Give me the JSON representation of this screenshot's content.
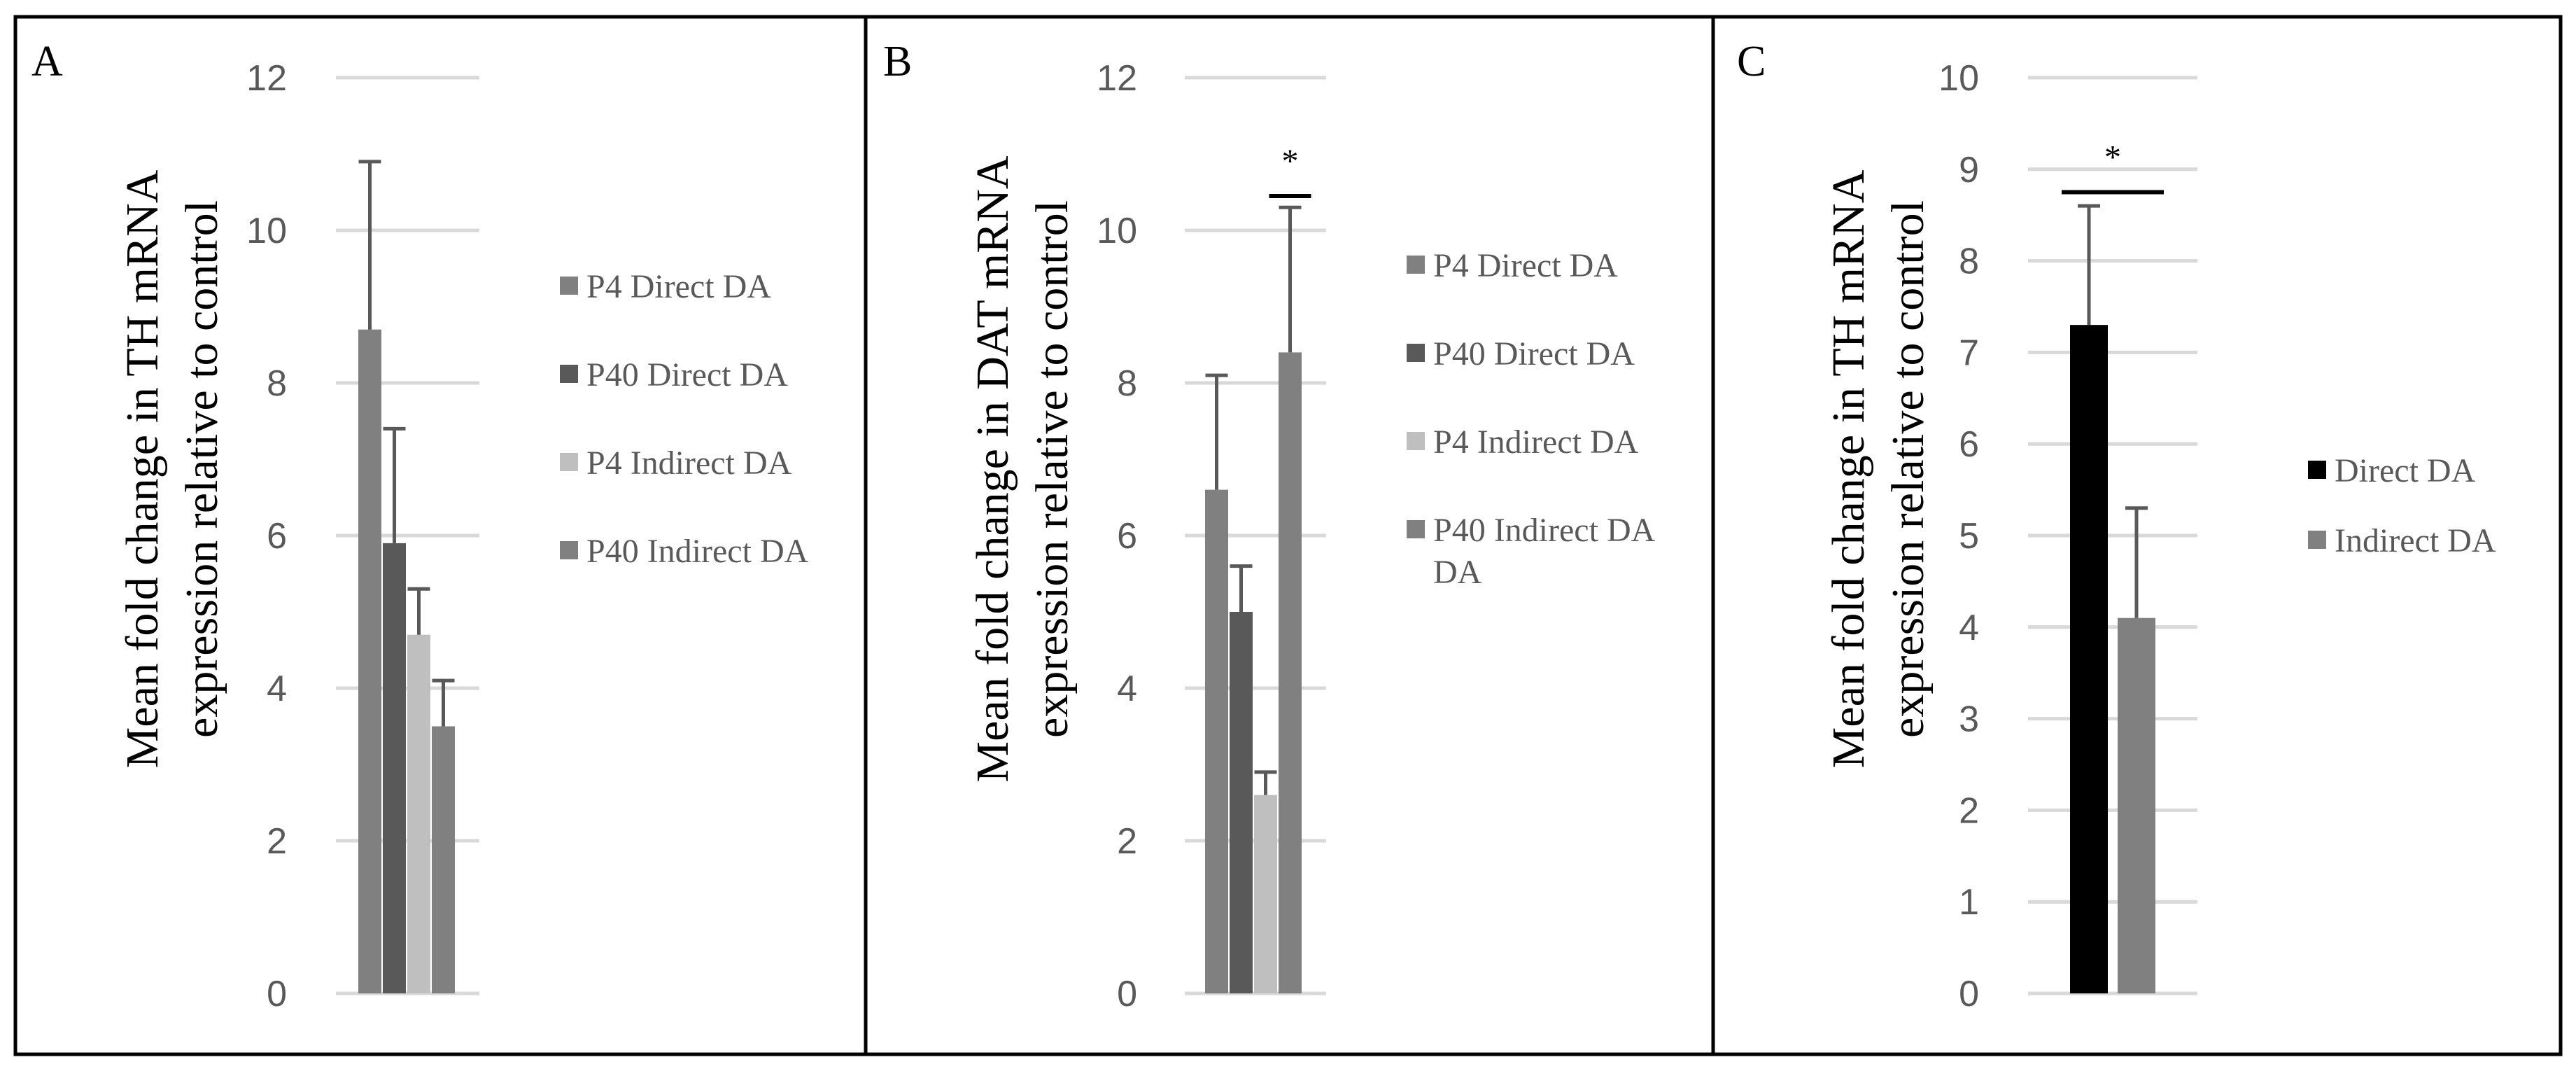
{
  "chart_data": [
    {
      "type": "bar",
      "panel": "A",
      "ylabel": [
        "Mean fold change in TH mRNA",
        "expression relative to control"
      ],
      "ylim": [
        0,
        12
      ],
      "ytick_step": 2,
      "grid": true,
      "legend_position": "right",
      "series": [
        {
          "name": "P4 Direct DA",
          "value": 8.7,
          "error": 2.2,
          "color": "#808080"
        },
        {
          "name": "P40 Direct DA",
          "value": 5.9,
          "error": 1.5,
          "color": "#595959"
        },
        {
          "name": "P4 Indirect DA",
          "value": 4.7,
          "error": 0.6,
          "color": "#bfbfbf"
        },
        {
          "name": "P40 Indirect DA",
          "value": 3.5,
          "error": 0.6,
          "color": "#808080"
        }
      ],
      "legend": [
        {
          "lines": [
            "P4 Direct DA"
          ],
          "color": "#808080"
        },
        {
          "lines": [
            "P40 Direct DA"
          ],
          "color": "#595959"
        },
        {
          "lines": [
            "P4 Indirect DA"
          ],
          "color": "#bfbfbf"
        },
        {
          "lines": [
            "P40 Indirect DA"
          ],
          "color": "#808080"
        }
      ],
      "significance": []
    },
    {
      "type": "bar",
      "panel": "B",
      "ylabel": [
        "Mean fold change in DAT mRNA",
        "expression relative to control"
      ],
      "ylim": [
        0,
        12
      ],
      "ytick_step": 2,
      "grid": true,
      "legend_position": "right",
      "series": [
        {
          "name": "P4 Direct DA",
          "value": 6.6,
          "error": 1.5,
          "color": "#808080"
        },
        {
          "name": "P40 Direct DA",
          "value": 5.0,
          "error": 0.6,
          "color": "#595959"
        },
        {
          "name": "P4 Indirect DA",
          "value": 2.6,
          "error": 0.3,
          "color": "#bfbfbf"
        },
        {
          "name": "P40 Indirect DA",
          "value": 8.4,
          "error": 1.9,
          "color": "#808080"
        }
      ],
      "legend": [
        {
          "lines": [
            "P4 Direct DA"
          ],
          "color": "#808080"
        },
        {
          "lines": [
            "P40 Direct DA"
          ],
          "color": "#595959"
        },
        {
          "lines": [
            "P4 Indirect DA"
          ],
          "color": "#bfbfbf"
        },
        {
          "lines": [
            "P40 Indirect DA",
            "DA"
          ],
          "color": "#808080"
        }
      ],
      "significance": [
        {
          "bar": 3,
          "y": 10.45,
          "label": "*"
        }
      ]
    },
    {
      "type": "bar",
      "panel": "C",
      "ylabel": [
        "Mean fold change in TH mRNA",
        "expression relative to control"
      ],
      "ylim": [
        0,
        10
      ],
      "ytick_step": 1,
      "grid": true,
      "legend_position": "right",
      "series": [
        {
          "name": "Direct DA",
          "value": 7.3,
          "error": 1.3,
          "color": "#000000"
        },
        {
          "name": "Indirect DA",
          "value": 4.1,
          "error": 1.2,
          "color": "#808080"
        }
      ],
      "legend": [
        {
          "lines": [
            "Direct DA"
          ],
          "color": "#000000"
        },
        {
          "lines": [
            "Indirect DA"
          ],
          "color": "#808080"
        }
      ],
      "significance": [
        {
          "bar": "both",
          "y": 8.75,
          "label": "*"
        }
      ]
    }
  ]
}
